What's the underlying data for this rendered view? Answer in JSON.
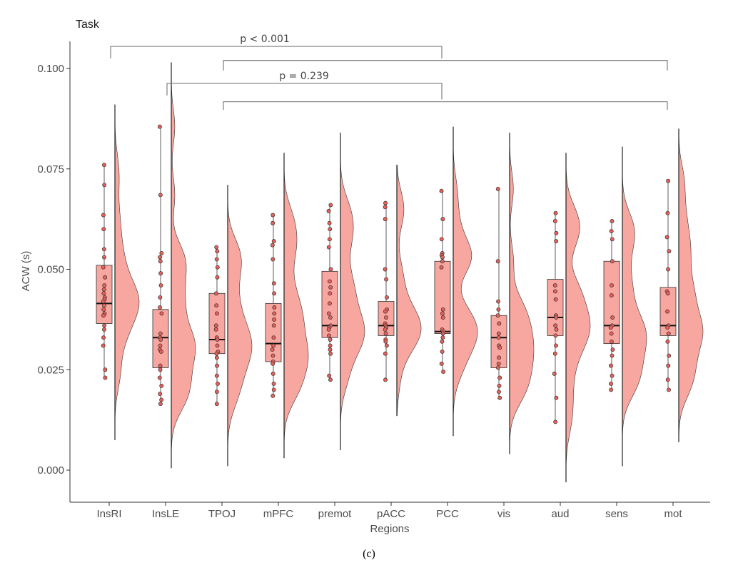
{
  "chart_data": {
    "type": "raincloud",
    "title": "Task",
    "xlabel": "Regions",
    "ylabel": "ACW (s)",
    "ylim": [
      -0.008,
      0.107
    ],
    "y_ticks": [
      0.0,
      0.025,
      0.05,
      0.075,
      0.1
    ],
    "y_tick_labels": [
      "0.000",
      "0.025",
      "0.050",
      "0.075",
      "0.100"
    ],
    "fill_color": "#f8a7a0",
    "point_color": "#e8605a",
    "categories": [
      "InsRI",
      "InsLE",
      "TPOJ",
      "mPFC",
      "premot",
      "pACC",
      "PCC",
      "vis",
      "aud",
      "sens",
      "mot"
    ],
    "series": [
      {
        "name": "InsRI",
        "min": 0.023,
        "q1": 0.0365,
        "median": 0.0415,
        "q3": 0.051,
        "max": 0.076,
        "violin_range": [
          0.0075,
          0.091
        ],
        "points": [
          0.076,
          0.071,
          0.0635,
          0.06,
          0.055,
          0.053,
          0.0505,
          0.048,
          0.046,
          0.045,
          0.044,
          0.043,
          0.0425,
          0.042,
          0.041,
          0.04,
          0.039,
          0.0385,
          0.036,
          0.035,
          0.033,
          0.031,
          0.025,
          0.023
        ]
      },
      {
        "name": "InsLE",
        "min": 0.0165,
        "q1": 0.0255,
        "median": 0.033,
        "q3": 0.04,
        "max": 0.0855,
        "violin_range": [
          0.0005,
          0.1015
        ],
        "points": [
          0.0855,
          0.0685,
          0.054,
          0.053,
          0.052,
          0.049,
          0.046,
          0.043,
          0.0405,
          0.039,
          0.034,
          0.033,
          0.0325,
          0.031,
          0.03,
          0.0295,
          0.026,
          0.025,
          0.023,
          0.021,
          0.019,
          0.0175,
          0.0165
        ]
      },
      {
        "name": "TPOJ",
        "min": 0.0165,
        "q1": 0.029,
        "median": 0.0325,
        "q3": 0.044,
        "max": 0.0555,
        "violin_range": [
          0.001,
          0.071
        ],
        "points": [
          0.0555,
          0.0545,
          0.0525,
          0.0505,
          0.048,
          0.044,
          0.041,
          0.039,
          0.036,
          0.035,
          0.033,
          0.0325,
          0.031,
          0.0295,
          0.029,
          0.028,
          0.026,
          0.0235,
          0.0215,
          0.0195,
          0.0165
        ]
      },
      {
        "name": "mPFC",
        "min": 0.0185,
        "q1": 0.027,
        "median": 0.0315,
        "q3": 0.0415,
        "max": 0.0635,
        "violin_range": [
          0.003,
          0.079
        ],
        "points": [
          0.0635,
          0.0615,
          0.057,
          0.056,
          0.0525,
          0.0465,
          0.044,
          0.0405,
          0.039,
          0.0375,
          0.036,
          0.033,
          0.031,
          0.03,
          0.0285,
          0.027,
          0.0265,
          0.024,
          0.0215,
          0.02,
          0.0185
        ]
      },
      {
        "name": "premot",
        "min": 0.0225,
        "q1": 0.033,
        "median": 0.036,
        "q3": 0.0495,
        "max": 0.066,
        "violin_range": [
          0.005,
          0.084
        ],
        "points": [
          0.066,
          0.0645,
          0.0615,
          0.06,
          0.0575,
          0.0555,
          0.05,
          0.047,
          0.0455,
          0.044,
          0.0415,
          0.039,
          0.038,
          0.036,
          0.0355,
          0.035,
          0.0335,
          0.0325,
          0.031,
          0.03,
          0.029,
          0.0235,
          0.0225
        ]
      },
      {
        "name": "pACC",
        "min": 0.0225,
        "q1": 0.0335,
        "median": 0.036,
        "q3": 0.042,
        "max": 0.0665,
        "violin_range": [
          0.0135,
          0.076
        ],
        "points": [
          0.0665,
          0.0655,
          0.0625,
          0.05,
          0.0475,
          0.043,
          0.04,
          0.0395,
          0.038,
          0.0365,
          0.036,
          0.0355,
          0.035,
          0.034,
          0.0325,
          0.032,
          0.031,
          0.029,
          0.0225
        ]
      },
      {
        "name": "PCC",
        "min": 0.0245,
        "q1": 0.034,
        "median": 0.0345,
        "q3": 0.052,
        "max": 0.0695,
        "violin_range": [
          0.0085,
          0.0855
        ],
        "points": [
          0.0695,
          0.0625,
          0.0575,
          0.054,
          0.0535,
          0.053,
          0.052,
          0.0505,
          0.04,
          0.039,
          0.038,
          0.035,
          0.0345,
          0.034,
          0.033,
          0.032,
          0.0295,
          0.0265,
          0.0245
        ]
      },
      {
        "name": "vis",
        "min": 0.018,
        "q1": 0.0255,
        "median": 0.033,
        "q3": 0.0385,
        "max": 0.07,
        "violin_range": [
          0.004,
          0.084
        ],
        "points": [
          0.07,
          0.052,
          0.042,
          0.04,
          0.0385,
          0.0365,
          0.034,
          0.033,
          0.031,
          0.0305,
          0.028,
          0.0265,
          0.0255,
          0.023,
          0.021,
          0.0195,
          0.018
        ]
      },
      {
        "name": "aud",
        "min": 0.012,
        "q1": 0.0335,
        "median": 0.038,
        "q3": 0.0475,
        "max": 0.064,
        "violin_range": [
          -0.003,
          0.079
        ],
        "points": [
          0.064,
          0.062,
          0.059,
          0.057,
          0.046,
          0.0445,
          0.0425,
          0.0385,
          0.038,
          0.036,
          0.035,
          0.0335,
          0.031,
          0.029,
          0.024,
          0.018,
          0.012
        ]
      },
      {
        "name": "sens",
        "min": 0.02,
        "q1": 0.0315,
        "median": 0.036,
        "q3": 0.052,
        "max": 0.062,
        "violin_range": [
          0.001,
          0.0805
        ],
        "points": [
          0.062,
          0.0595,
          0.0575,
          0.052,
          0.046,
          0.0435,
          0.038,
          0.036,
          0.0355,
          0.034,
          0.032,
          0.03,
          0.0285,
          0.026,
          0.0235,
          0.0215,
          0.02
        ]
      },
      {
        "name": "mot",
        "min": 0.02,
        "q1": 0.0335,
        "median": 0.036,
        "q3": 0.0455,
        "max": 0.072,
        "violin_range": [
          0.007,
          0.085
        ],
        "points": [
          0.072,
          0.064,
          0.058,
          0.0545,
          0.05,
          0.0445,
          0.044,
          0.0395,
          0.036,
          0.0355,
          0.034,
          0.032,
          0.0285,
          0.026,
          0.0225,
          0.02
        ]
      }
    ],
    "annotations": [
      {
        "label": "p < 0.001",
        "pairs": [
          [
            "InsRI",
            "PCC"
          ],
          [
            "TPOJ",
            "mot"
          ]
        ]
      },
      {
        "label": "p = 0.239",
        "pairs": [
          [
            "InsLE",
            "PCC"
          ],
          [
            "TPOJ",
            "mot"
          ]
        ]
      }
    ]
  },
  "caption": "(c)"
}
